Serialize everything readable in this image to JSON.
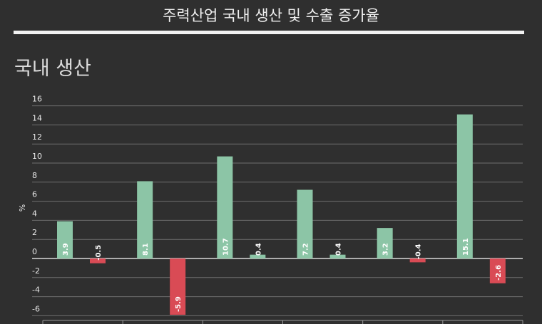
{
  "page_title": "주력산업 국내 생산 및 수출 증가율",
  "section_title": "국내 생산",
  "colors": {
    "background": "#2f2f2f",
    "positive_bar": "#8cc5a6",
    "negative_bar": "#d94b55",
    "grid": "#6f6f6f",
    "axis_text": "#e8e8e8"
  },
  "chart_data": {
    "type": "bar",
    "ylabel": "%",
    "ylim": [
      -6,
      16
    ],
    "yticks": [
      -6,
      -4,
      -2,
      0,
      2,
      4,
      6,
      8,
      10,
      12,
      14,
      16
    ],
    "grid": true,
    "series": [
      {
        "values": [
          3.9,
          8.1,
          10.7,
          7.2,
          3.2,
          15.1
        ],
        "labels": [
          "3.9",
          "8.1",
          "10.7",
          "7.2",
          "3.2",
          "15.1"
        ]
      },
      {
        "values": [
          -0.5,
          -5.9,
          0.4,
          0.4,
          -0.4,
          -2.6
        ],
        "labels": [
          "-0.5",
          "-5.9",
          "0.4",
          "0.4",
          "-0.4",
          "-2.6"
        ]
      }
    ],
    "category_count": 6
  }
}
